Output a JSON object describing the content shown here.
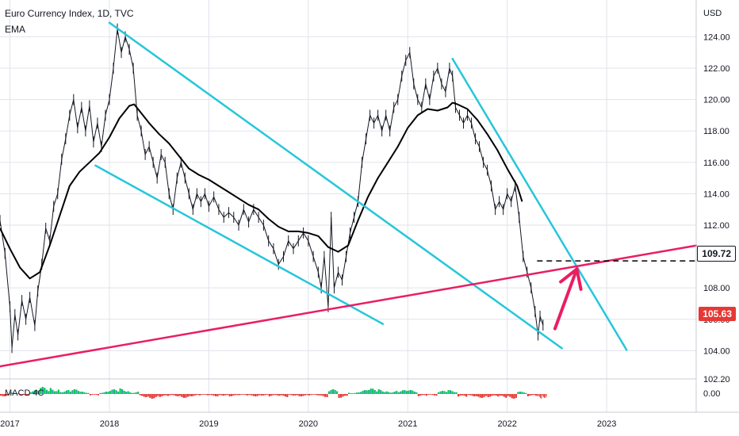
{
  "header": {
    "title": "Euro Currency Index, 1D, TVC",
    "indicator": "EMA"
  },
  "axis": {
    "currency": "USD",
    "y_ticks": [
      "124.00",
      "122.00",
      "120.00",
      "118.00",
      "116.00",
      "114.00",
      "112.00",
      "108.00",
      "106.00",
      "104.00",
      "102.20"
    ],
    "x_ticks": [
      "2017",
      "2018",
      "2019",
      "2020",
      "2021",
      "2022",
      "2023"
    ],
    "macd_label": "MACD 4C",
    "macd_tick": "0.00"
  },
  "badges": {
    "level": "109.72",
    "last": "105.63"
  },
  "colors": {
    "price": "#131722",
    "ema": "#000000",
    "channel": "#26c6da",
    "support": "#e91e63",
    "arrow": "#e91e63",
    "macd_pos": "#26a69a",
    "macd_pos_bright": "#00c853",
    "macd_neg": "#e53935",
    "grid": "#e0e3eb"
  },
  "chart_data": {
    "type": "line",
    "title": "Euro Currency Index, 1D, TVC",
    "ylabel": "USD",
    "ylim": [
      102.2,
      125.5
    ],
    "xlim": [
      2016.9,
      2023.9
    ],
    "series": [
      {
        "name": "price",
        "points": [
          [
            2016.9,
            112.3
          ],
          [
            2016.95,
            110.2
          ],
          [
            2017.0,
            106.8
          ],
          [
            2017.02,
            104.2
          ],
          [
            2017.05,
            106.3
          ],
          [
            2017.08,
            105.0
          ],
          [
            2017.12,
            107.2
          ],
          [
            2017.16,
            106.0
          ],
          [
            2017.2,
            107.4
          ],
          [
            2017.25,
            105.6
          ],
          [
            2017.28,
            107.8
          ],
          [
            2017.32,
            109.5
          ],
          [
            2017.36,
            111.8
          ],
          [
            2017.4,
            111.0
          ],
          [
            2017.44,
            113.2
          ],
          [
            2017.48,
            114.0
          ],
          [
            2017.52,
            116.2
          ],
          [
            2017.56,
            117.5
          ],
          [
            2017.6,
            119.0
          ],
          [
            2017.64,
            120.0
          ],
          [
            2017.68,
            118.2
          ],
          [
            2017.72,
            119.5
          ],
          [
            2017.76,
            118.0
          ],
          [
            2017.8,
            119.6
          ],
          [
            2017.84,
            117.3
          ],
          [
            2017.88,
            118.5
          ],
          [
            2017.92,
            117.0
          ],
          [
            2017.96,
            119.0
          ],
          [
            2018.0,
            120.0
          ],
          [
            2018.04,
            122.0
          ],
          [
            2018.08,
            124.5
          ],
          [
            2018.12,
            123.0
          ],
          [
            2018.16,
            124.0
          ],
          [
            2018.2,
            123.2
          ],
          [
            2018.24,
            122.0
          ],
          [
            2018.28,
            119.0
          ],
          [
            2018.32,
            118.0
          ],
          [
            2018.36,
            116.5
          ],
          [
            2018.4,
            117.0
          ],
          [
            2018.44,
            116.0
          ],
          [
            2018.48,
            115.0
          ],
          [
            2018.52,
            116.5
          ],
          [
            2018.56,
            116.0
          ],
          [
            2018.6,
            114.0
          ],
          [
            2018.64,
            113.0
          ],
          [
            2018.68,
            115.0
          ],
          [
            2018.72,
            116.0
          ],
          [
            2018.76,
            115.0
          ],
          [
            2018.8,
            114.0
          ],
          [
            2018.84,
            113.0
          ],
          [
            2018.88,
            114.0
          ],
          [
            2018.92,
            113.5
          ],
          [
            2018.96,
            114.0
          ],
          [
            2019.0,
            113.2
          ],
          [
            2019.05,
            113.8
          ],
          [
            2019.1,
            113.0
          ],
          [
            2019.15,
            112.5
          ],
          [
            2019.2,
            112.8
          ],
          [
            2019.25,
            112.5
          ],
          [
            2019.3,
            112.0
          ],
          [
            2019.35,
            113.0
          ],
          [
            2019.4,
            112.2
          ],
          [
            2019.45,
            113.0
          ],
          [
            2019.5,
            112.5
          ],
          [
            2019.55,
            112.0
          ],
          [
            2019.6,
            111.0
          ],
          [
            2019.65,
            110.5
          ],
          [
            2019.7,
            109.5
          ],
          [
            2019.75,
            110.0
          ],
          [
            2019.8,
            111.0
          ],
          [
            2019.85,
            110.5
          ],
          [
            2019.9,
            111.0
          ],
          [
            2019.95,
            111.5
          ],
          [
            2020.0,
            111.0
          ],
          [
            2020.05,
            110.0
          ],
          [
            2020.1,
            109.0
          ],
          [
            2020.13,
            108.0
          ],
          [
            2020.16,
            110.0
          ],
          [
            2020.2,
            106.8
          ],
          [
            2020.23,
            112.5
          ],
          [
            2020.26,
            108.0
          ],
          [
            2020.3,
            109.0
          ],
          [
            2020.34,
            108.5
          ],
          [
            2020.38,
            110.0
          ],
          [
            2020.42,
            111.5
          ],
          [
            2020.46,
            112.5
          ],
          [
            2020.5,
            113.5
          ],
          [
            2020.54,
            116.0
          ],
          [
            2020.58,
            117.5
          ],
          [
            2020.62,
            119.0
          ],
          [
            2020.66,
            118.5
          ],
          [
            2020.7,
            119.0
          ],
          [
            2020.74,
            118.0
          ],
          [
            2020.78,
            119.0
          ],
          [
            2020.82,
            118.0
          ],
          [
            2020.86,
            119.5
          ],
          [
            2020.9,
            120.0
          ],
          [
            2020.94,
            121.5
          ],
          [
            2020.98,
            122.5
          ],
          [
            2021.02,
            123.0
          ],
          [
            2021.06,
            121.0
          ],
          [
            2021.1,
            120.0
          ],
          [
            2021.14,
            119.5
          ],
          [
            2021.18,
            121.0
          ],
          [
            2021.22,
            120.0
          ],
          [
            2021.26,
            121.5
          ],
          [
            2021.3,
            122.0
          ],
          [
            2021.34,
            121.0
          ],
          [
            2021.38,
            120.5
          ],
          [
            2021.42,
            122.0
          ],
          [
            2021.45,
            121.5
          ],
          [
            2021.48,
            119.5
          ],
          [
            2021.52,
            119.0
          ],
          [
            2021.56,
            118.5
          ],
          [
            2021.6,
            119.0
          ],
          [
            2021.64,
            118.5
          ],
          [
            2021.68,
            117.5
          ],
          [
            2021.72,
            117.0
          ],
          [
            2021.76,
            116.0
          ],
          [
            2021.8,
            115.5
          ],
          [
            2021.84,
            114.5
          ],
          [
            2021.88,
            113.0
          ],
          [
            2021.92,
            113.5
          ],
          [
            2021.96,
            113.0
          ],
          [
            2022.0,
            114.0
          ],
          [
            2022.04,
            113.5
          ],
          [
            2022.08,
            114.5
          ],
          [
            2022.12,
            112.5
          ],
          [
            2022.16,
            110.0
          ],
          [
            2022.2,
            109.0
          ],
          [
            2022.24,
            108.0
          ],
          [
            2022.28,
            106.5
          ],
          [
            2022.31,
            105.0
          ],
          [
            2022.33,
            106.2
          ],
          [
            2022.36,
            105.63
          ]
        ]
      },
      {
        "name": "EMA",
        "points": [
          [
            2016.9,
            111.8
          ],
          [
            2017.0,
            110.5
          ],
          [
            2017.1,
            109.3
          ],
          [
            2017.2,
            108.6
          ],
          [
            2017.3,
            109.0
          ],
          [
            2017.4,
            110.7
          ],
          [
            2017.5,
            112.6
          ],
          [
            2017.6,
            114.5
          ],
          [
            2017.7,
            115.4
          ],
          [
            2017.8,
            116.0
          ],
          [
            2017.9,
            116.6
          ],
          [
            2018.0,
            117.6
          ],
          [
            2018.1,
            118.8
          ],
          [
            2018.2,
            119.6
          ],
          [
            2018.25,
            119.7
          ],
          [
            2018.3,
            119.3
          ],
          [
            2018.4,
            118.5
          ],
          [
            2018.5,
            117.8
          ],
          [
            2018.6,
            117.2
          ],
          [
            2018.7,
            116.4
          ],
          [
            2018.8,
            115.6
          ],
          [
            2018.9,
            115.2
          ],
          [
            2019.0,
            114.9
          ],
          [
            2019.1,
            114.5
          ],
          [
            2019.2,
            114.1
          ],
          [
            2019.3,
            113.7
          ],
          [
            2019.4,
            113.3
          ],
          [
            2019.5,
            113.0
          ],
          [
            2019.6,
            112.4
          ],
          [
            2019.7,
            111.9
          ],
          [
            2019.8,
            111.6
          ],
          [
            2019.9,
            111.6
          ],
          [
            2020.0,
            111.5
          ],
          [
            2020.1,
            111.3
          ],
          [
            2020.2,
            110.6
          ],
          [
            2020.3,
            110.3
          ],
          [
            2020.4,
            110.7
          ],
          [
            2020.5,
            112.3
          ],
          [
            2020.6,
            113.8
          ],
          [
            2020.7,
            115.0
          ],
          [
            2020.8,
            116.0
          ],
          [
            2020.9,
            117.0
          ],
          [
            2021.0,
            118.2
          ],
          [
            2021.1,
            119.0
          ],
          [
            2021.2,
            119.4
          ],
          [
            2021.3,
            119.3
          ],
          [
            2021.4,
            119.5
          ],
          [
            2021.45,
            119.8
          ],
          [
            2021.5,
            119.7
          ],
          [
            2021.6,
            119.4
          ],
          [
            2021.7,
            118.7
          ],
          [
            2021.8,
            117.8
          ],
          [
            2021.9,
            116.8
          ],
          [
            2022.0,
            115.6
          ],
          [
            2022.1,
            114.5
          ],
          [
            2022.15,
            113.5
          ]
        ]
      }
    ],
    "trendlines": [
      {
        "name": "channel-upper",
        "color": "#26c6da",
        "p1": [
          2018.0,
          124.9
        ],
        "p2": [
          2022.55,
          104.15
        ]
      },
      {
        "name": "channel-lower",
        "color": "#26c6da",
        "p1": [
          2017.86,
          115.8
        ],
        "p2": [
          2020.75,
          105.7
        ]
      },
      {
        "name": "falling-resistance",
        "color": "#26c6da",
        "p1": [
          2021.45,
          122.6
        ],
        "p2": [
          2023.2,
          104.05
        ]
      },
      {
        "name": "rising-support",
        "color": "#e91e63",
        "p1": [
          2016.9,
          103.0
        ],
        "p2": [
          2023.9,
          110.7
        ]
      }
    ],
    "levels": [
      {
        "name": "target-level",
        "value": 109.72,
        "from_x": 2022.3,
        "style": "dashed"
      }
    ],
    "annotations": [
      {
        "name": "bounce-arrow",
        "type": "arrow",
        "from": [
          2022.48,
          105.4
        ],
        "to": [
          2022.7,
          109.2
        ]
      }
    ],
    "macd": {
      "name": "MACD 4C",
      "x": [
        2016.9,
        2017.0,
        2017.1,
        2017.2,
        2017.3,
        2017.4,
        2017.5,
        2017.6,
        2017.7,
        2017.8,
        2017.9,
        2018.0,
        2018.1,
        2018.2,
        2018.3,
        2018.4,
        2018.5,
        2018.6,
        2018.7,
        2018.8,
        2018.9,
        2019.0,
        2019.1,
        2019.2,
        2019.3,
        2019.4,
        2019.5,
        2019.6,
        2019.7,
        2019.8,
        2019.9,
        2020.0,
        2020.1,
        2020.2,
        2020.3,
        2020.4,
        2020.5,
        2020.6,
        2020.7,
        2020.8,
        2020.9,
        2021.0,
        2021.1,
        2021.2,
        2021.3,
        2021.4,
        2021.5,
        2021.6,
        2021.7,
        2021.8,
        2021.9,
        2022.0,
        2022.1,
        2022.2,
        2022.3,
        2022.35
      ],
      "values": [
        -0.3,
        0.2,
        -0.2,
        0.5,
        0.9,
        0.8,
        0.5,
        0.6,
        0.3,
        -0.2,
        0.3,
        0.6,
        0.7,
        0.3,
        -0.4,
        -0.6,
        -0.4,
        -0.3,
        -0.5,
        -0.3,
        -0.2,
        -0.3,
        -0.2,
        -0.3,
        -0.2,
        -0.3,
        -0.2,
        -0.3,
        -0.4,
        -0.2,
        -0.3,
        -0.2,
        -0.4,
        0.6,
        -0.5,
        0.2,
        0.5,
        0.7,
        0.6,
        0.4,
        0.5,
        0.5,
        -0.3,
        -0.2,
        0.4,
        0.5,
        -0.4,
        -0.3,
        -0.5,
        -0.4,
        -0.5,
        -0.6,
        0.3,
        -0.3,
        -0.6,
        -0.5
      ]
    }
  }
}
